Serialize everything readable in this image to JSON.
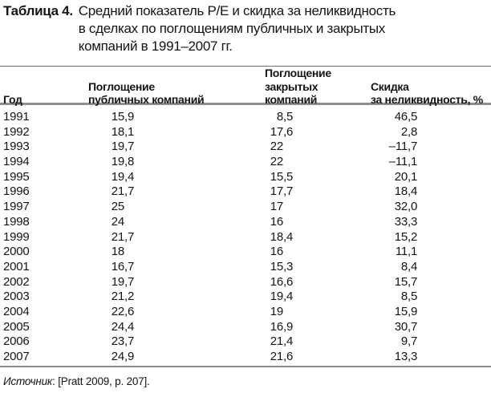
{
  "title": {
    "label": "Таблица 4.",
    "text": "Средний показатель P/E и скидка за неликвидность\nв сделках по поглощениям публичных и закрытых\nкомпаний в 1991–2007 гг."
  },
  "table": {
    "headers": [
      "Год",
      "Поглощение\nпубличных компаний",
      "Поглощение\nзакрытых компаний",
      "Скидка\nза неликвидность, %"
    ],
    "column_names": [
      "year",
      "public_pe",
      "private_pe",
      "illiquidity_discount_pct"
    ],
    "rows": [
      [
        "1991",
        "15,9",
        "8,5",
        "46,5"
      ],
      [
        "1992",
        "18,1",
        "17,6",
        "2,8"
      ],
      [
        "1993",
        "19,7",
        "22",
        "–11,7"
      ],
      [
        "1994",
        "19,8",
        "22",
        "–11,1"
      ],
      [
        "1995",
        "19,4",
        "15,5",
        "20,1"
      ],
      [
        "1996",
        "21,7",
        "17,7",
        "18,4"
      ],
      [
        "1997",
        "25",
        "17",
        "32,0"
      ],
      [
        "1998",
        "24",
        "16",
        "33,3"
      ],
      [
        "1999",
        "21,7",
        "18,4",
        "15,2"
      ],
      [
        "2000",
        "18",
        "16",
        "11,1"
      ],
      [
        "2001",
        "16,7",
        "15,3",
        "8,4"
      ],
      [
        "2002",
        "19,7",
        "16,6",
        "15,7"
      ],
      [
        "2003",
        "21,2",
        "19,4",
        "8,5"
      ],
      [
        "2004",
        "22,6",
        "19",
        "15,9"
      ],
      [
        "2005",
        "24,4",
        "16,9",
        "30,7"
      ],
      [
        "2006",
        "23,7",
        "21,4",
        "9,7"
      ],
      [
        "2007",
        "24,9",
        "21,6",
        "13,3"
      ]
    ]
  },
  "source": {
    "label": "Источник",
    "text": ": [Pratt 2009, p. 207]."
  },
  "colors": {
    "text": "#141414",
    "rule_thin": "#6a6a6a",
    "rule_thick": "#8f8f8f",
    "background": "#ffffff"
  }
}
